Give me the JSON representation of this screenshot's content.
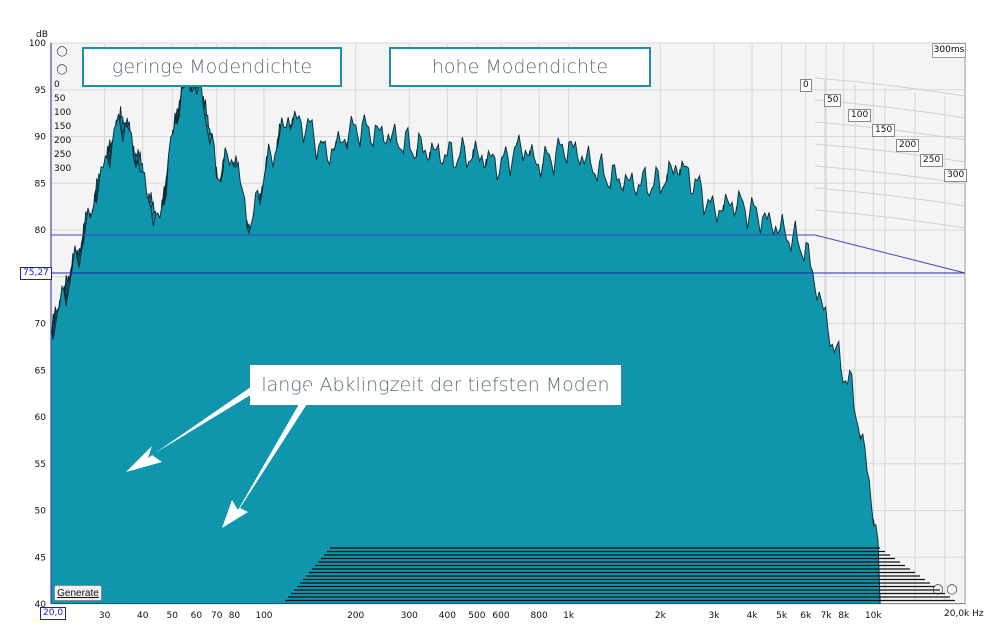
{
  "chart_data": {
    "type": "area",
    "title": "",
    "xlabel": "Hz",
    "ylabel": "dB",
    "x_scale": "log",
    "xlim": [
      20,
      20000
    ],
    "ylim": [
      40,
      100
    ],
    "y_ticks": [
      "100",
      "95",
      "90",
      "85",
      "80",
      "75",
      "70",
      "65",
      "60",
      "55",
      "50",
      "45",
      "40"
    ],
    "x_ticks": [
      "30",
      "40",
      "50",
      "60",
      "70",
      "80",
      "100",
      "200",
      "300",
      "400",
      "500",
      "600",
      "800",
      "1k",
      "2k",
      "3k",
      "4k",
      "5k",
      "6k",
      "7k",
      "8k",
      "10k"
    ],
    "x_left_value": "20,0",
    "x_right_value": "20,0k Hz",
    "cursor_level": "75,27",
    "time_axis_label": "300ms",
    "time_ticks": [
      "0",
      "50",
      "100",
      "150",
      "200",
      "250",
      "300"
    ],
    "left_time_ticks": [
      "0",
      "50",
      "100",
      "150",
      "200",
      "250",
      "300"
    ],
    "slices_ms": [
      0,
      10,
      20,
      30,
      40,
      50,
      60,
      70,
      80,
      90,
      100,
      110,
      120,
      130,
      140,
      150,
      160,
      170,
      180,
      190,
      200,
      210,
      220,
      230,
      240,
      250,
      260,
      270,
      280,
      290,
      300
    ],
    "envelope_0ms": [
      [
        20,
        69
      ],
      [
        25,
        78
      ],
      [
        30,
        87
      ],
      [
        34,
        92
      ],
      [
        38,
        88
      ],
      [
        45,
        80
      ],
      [
        52,
        93
      ],
      [
        57,
        96
      ],
      [
        63,
        94
      ],
      [
        70,
        86
      ],
      [
        80,
        88
      ],
      [
        90,
        80
      ],
      [
        100,
        86
      ],
      [
        120,
        92
      ],
      [
        140,
        91
      ],
      [
        160,
        88
      ],
      [
        200,
        91
      ],
      [
        260,
        90
      ],
      [
        300,
        89
      ],
      [
        400,
        88
      ],
      [
        500,
        88
      ],
      [
        600,
        87
      ],
      [
        700,
        89
      ],
      [
        800,
        87
      ],
      [
        1000,
        89
      ],
      [
        1300,
        86
      ],
      [
        1600,
        85
      ],
      [
        2000,
        85
      ],
      [
        2300,
        87
      ],
      [
        2600,
        85
      ],
      [
        3000,
        82
      ],
      [
        3500,
        83
      ],
      [
        4000,
        82
      ],
      [
        5000,
        80
      ],
      [
        6000,
        78
      ],
      [
        6500,
        74
      ],
      [
        7500,
        67
      ],
      [
        8500,
        63
      ],
      [
        9500,
        55
      ],
      [
        10500,
        45
      ]
    ],
    "colors": {
      "fill": "#0f95ac",
      "line": "#0b2730",
      "grid": "#d8d8d8",
      "cursor": "#2222aa"
    }
  },
  "annotations": {
    "low_density": "geringe Modendichte",
    "high_density": "hohe Modendichte",
    "long_decay": "lange Abklingzeit der tiefsten Moden"
  },
  "controls": {
    "generate_label": "Generate",
    "zoom_icon": "zoom-icon",
    "pan_icon": "pan-icon"
  }
}
